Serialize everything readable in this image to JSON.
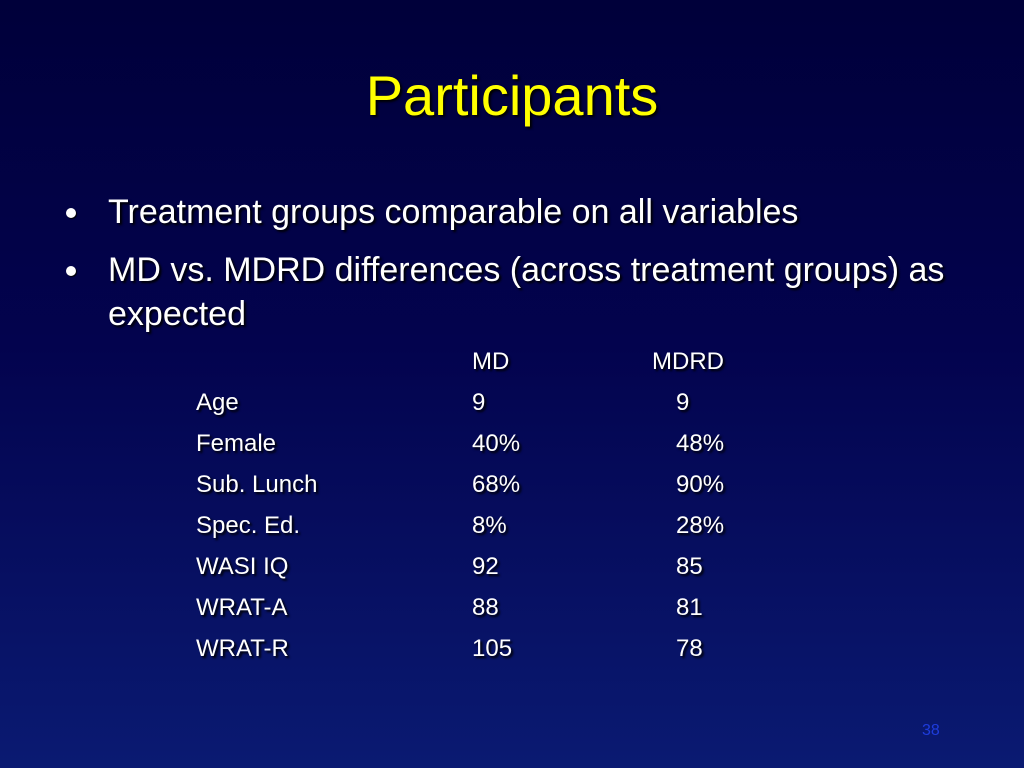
{
  "slide": {
    "title": "Participants",
    "bullets": [
      "Treatment groups comparable on all variables",
      "MD vs. MDRD differences (across treatment groups) as expected"
    ],
    "table": {
      "headers": [
        "",
        "MD",
        "MDRD"
      ],
      "rows": [
        [
          "Age",
          "9",
          "9"
        ],
        [
          "Female",
          "40%",
          "48%"
        ],
        [
          "Sub. Lunch",
          "68%",
          "90%"
        ],
        [
          "Spec. Ed.",
          "8%",
          "28%"
        ],
        [
          "WASI IQ",
          "92",
          "85"
        ],
        [
          "WRAT-A",
          "88",
          "81"
        ],
        [
          "WRAT-R",
          "105",
          "78"
        ]
      ]
    },
    "page_number": "38"
  },
  "colors": {
    "background_top": "#00003a",
    "background_bottom": "#0a1a72",
    "title": "#ffff00",
    "text": "#ffffff",
    "page_number": "#1e3cdc"
  }
}
